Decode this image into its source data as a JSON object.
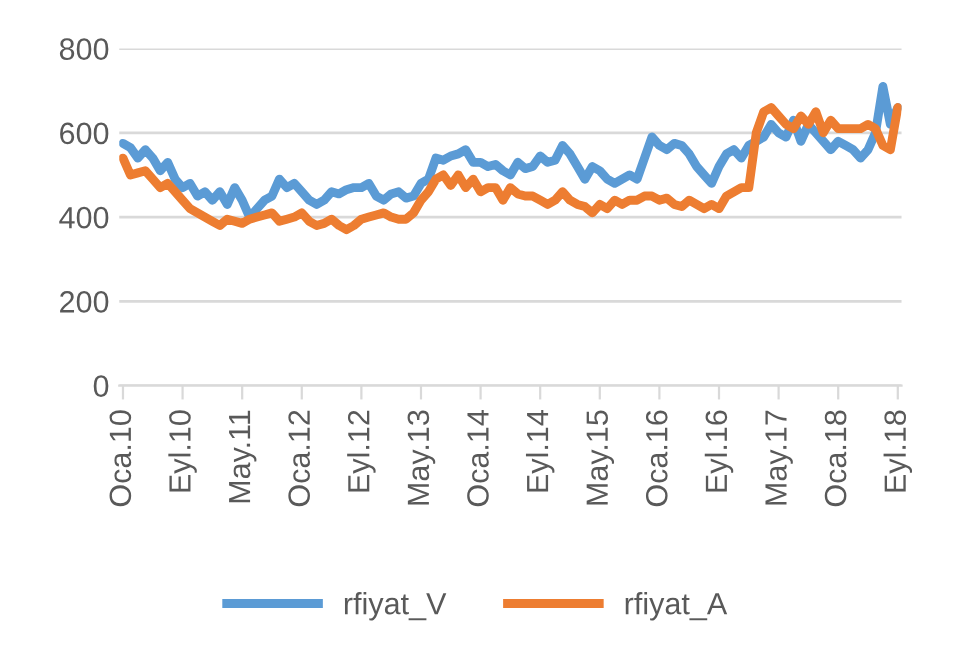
{
  "chart_data": {
    "type": "line",
    "categories": [
      "Oca.10",
      null,
      null,
      null,
      null,
      null,
      null,
      null,
      "Eyl.10",
      null,
      null,
      null,
      null,
      null,
      null,
      null,
      "May.11",
      null,
      null,
      null,
      null,
      null,
      null,
      null,
      "Oca.12",
      null,
      null,
      null,
      null,
      null,
      null,
      null,
      "Eyl.12",
      null,
      null,
      null,
      null,
      null,
      null,
      null,
      "May.13",
      null,
      null,
      null,
      null,
      null,
      null,
      null,
      "Oca.14",
      null,
      null,
      null,
      null,
      null,
      null,
      null,
      "Eyl.14",
      null,
      null,
      null,
      null,
      null,
      null,
      null,
      "May.15",
      null,
      null,
      null,
      null,
      null,
      null,
      null,
      "Oca.16",
      null,
      null,
      null,
      null,
      null,
      null,
      null,
      "Eyl.16",
      null,
      null,
      null,
      null,
      null,
      null,
      null,
      "May.17",
      null,
      null,
      null,
      null,
      null,
      null,
      null,
      "Oca.18",
      null,
      null,
      null,
      null,
      null,
      null,
      null,
      "Eyl.18"
    ],
    "series": [
      {
        "name": "rfiyat_V",
        "color": "#5b9bd5",
        "values": [
          575,
          565,
          540,
          560,
          540,
          510,
          530,
          490,
          470,
          480,
          450,
          460,
          440,
          460,
          430,
          470,
          440,
          400,
          420,
          440,
          450,
          490,
          470,
          480,
          460,
          440,
          430,
          440,
          460,
          455,
          465,
          470,
          470,
          480,
          450,
          440,
          455,
          460,
          445,
          450,
          480,
          490,
          540,
          535,
          545,
          550,
          560,
          530,
          530,
          520,
          525,
          510,
          500,
          530,
          515,
          520,
          545,
          530,
          535,
          570,
          550,
          520,
          490,
          520,
          510,
          490,
          480,
          490,
          500,
          490,
          540,
          590,
          570,
          560,
          575,
          570,
          550,
          520,
          500,
          480,
          520,
          550,
          560,
          540,
          570,
          580,
          590,
          620,
          600,
          590,
          630,
          580,
          620,
          600,
          580,
          560,
          580,
          570,
          560,
          540,
          560,
          600,
          710,
          620,
          660
        ]
      },
      {
        "name": "rfiyat_A",
        "color": "#ed7d31",
        "values": [
          540,
          500,
          505,
          510,
          490,
          470,
          480,
          460,
          440,
          420,
          410,
          400,
          390,
          380,
          395,
          390,
          385,
          395,
          400,
          405,
          410,
          390,
          395,
          400,
          410,
          390,
          380,
          385,
          395,
          380,
          370,
          380,
          395,
          400,
          405,
          410,
          400,
          395,
          395,
          410,
          440,
          460,
          490,
          500,
          475,
          500,
          470,
          490,
          460,
          470,
          470,
          440,
          470,
          455,
          450,
          450,
          440,
          430,
          440,
          460,
          440,
          430,
          425,
          410,
          430,
          420,
          440,
          430,
          440,
          440,
          450,
          450,
          440,
          445,
          430,
          425,
          440,
          430,
          420,
          430,
          420,
          450,
          460,
          470,
          470,
          600,
          650,
          660,
          640,
          620,
          610,
          640,
          620,
          650,
          600,
          630,
          610,
          610,
          610,
          610,
          620,
          610,
          570,
          560,
          660
        ]
      }
    ],
    "ylim": [
      0,
      800
    ],
    "yticks": [
      0,
      200,
      400,
      600,
      800
    ],
    "grid": "y",
    "legend": "bottom",
    "line_style": "solid",
    "marker": "none"
  }
}
